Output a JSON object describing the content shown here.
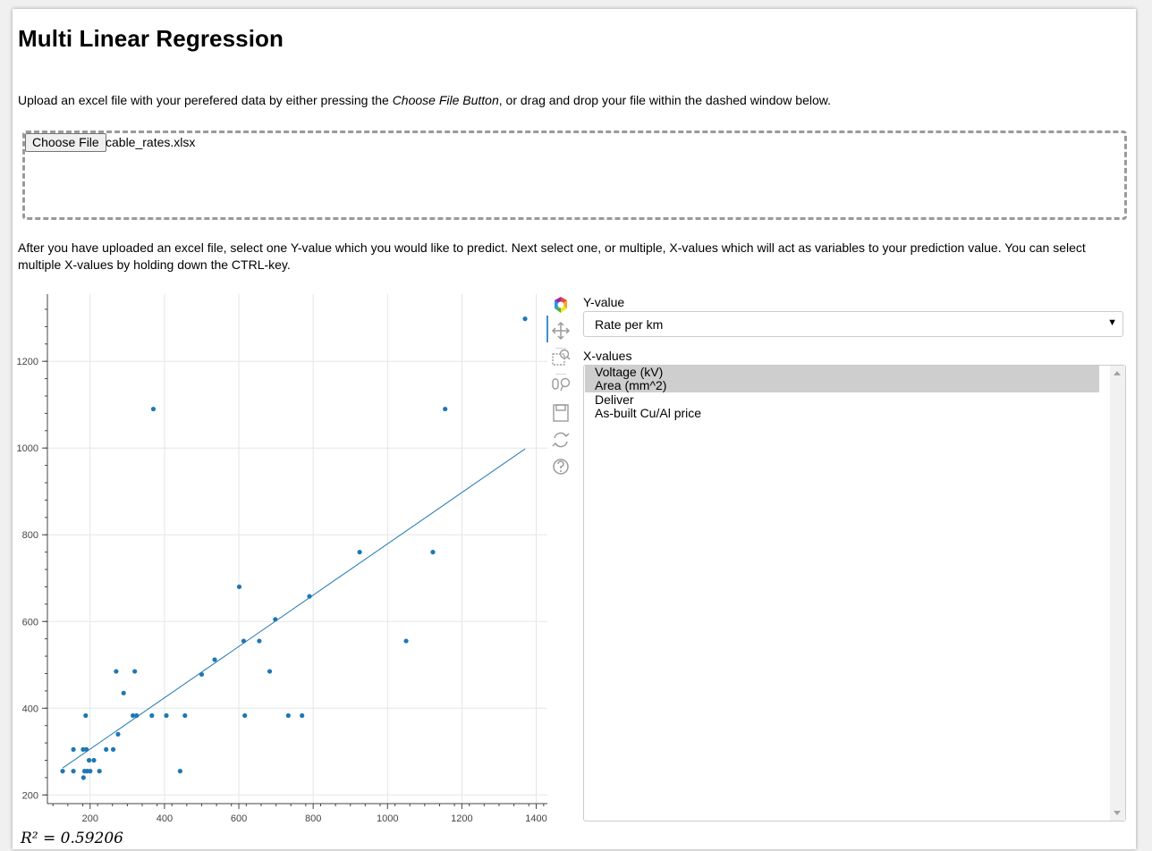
{
  "title": "Multi Linear Regression",
  "intro": {
    "pre": "Upload an excel file with your perefered data by either pressing the ",
    "emph": "Choose File Button",
    "post": ", or drag and drop your file within the dashed window below."
  },
  "upload": {
    "button_label": "Choose File",
    "file_name": "cable_rates.xlsx"
  },
  "instructions": "After you have uploaded an excel file, select one Y-value which you would like to predict. Next select one, or multiple, X-values which will act as variables to your prediction value. You can select multiple X-values by holding down the CTRL-key.",
  "y_select": {
    "label": "Y-value",
    "value": "Rate per km"
  },
  "x_select": {
    "label": "X-values",
    "options": [
      {
        "label": "Voltage (kV)",
        "selected": true
      },
      {
        "label": "Area (mm^2)",
        "selected": true
      },
      {
        "label": "Deliver",
        "selected": false
      },
      {
        "label": "As-built Cu/Al price",
        "selected": false
      }
    ]
  },
  "toolbar": [
    "bokeh-logo-icon",
    "pan-icon",
    "box-zoom-icon",
    "wheel-zoom-icon",
    "save-icon",
    "reset-icon",
    "help-icon"
  ],
  "r2_text": "R² = 0.59206",
  "colors": {
    "point": "#1f77b4",
    "fit_line": "#1f77b4",
    "grid": "#e5e5e5"
  },
  "chart_data": {
    "type": "scatter",
    "title": "",
    "xlabel": "",
    "ylabel": "",
    "xlim": [
      85,
      1430
    ],
    "ylim": [
      180,
      1355
    ],
    "xticks": [
      200,
      400,
      600,
      800,
      1000,
      1200,
      1400
    ],
    "yticks": [
      200,
      400,
      600,
      800,
      1000,
      1200
    ],
    "grid": true,
    "points": [
      [
        126,
        255
      ],
      [
        155,
        255
      ],
      [
        155,
        305
      ],
      [
        181,
        305
      ],
      [
        182,
        240
      ],
      [
        185,
        255
      ],
      [
        188,
        383
      ],
      [
        190,
        305
      ],
      [
        192,
        255
      ],
      [
        197,
        280
      ],
      [
        200,
        255
      ],
      [
        210,
        280
      ],
      [
        225,
        255
      ],
      [
        243,
        305
      ],
      [
        262,
        305
      ],
      [
        270,
        485
      ],
      [
        275,
        340
      ],
      [
        290,
        435
      ],
      [
        315,
        383
      ],
      [
        320,
        485
      ],
      [
        325,
        383
      ],
      [
        366,
        383
      ],
      [
        370,
        1090
      ],
      [
        405,
        383
      ],
      [
        442,
        255
      ],
      [
        455,
        383
      ],
      [
        500,
        478
      ],
      [
        535,
        512
      ],
      [
        601,
        680
      ],
      [
        613,
        555
      ],
      [
        616,
        383
      ],
      [
        655,
        555
      ],
      [
        683,
        485
      ],
      [
        698,
        605
      ],
      [
        733,
        383
      ],
      [
        770,
        383
      ],
      [
        790,
        658
      ],
      [
        925,
        760
      ],
      [
        1050,
        555
      ],
      [
        1122,
        760
      ],
      [
        1155,
        1090
      ],
      [
        1370,
        1298
      ]
    ],
    "fit_line": [
      [
        126,
        262
      ],
      [
        1370,
        998
      ]
    ]
  }
}
